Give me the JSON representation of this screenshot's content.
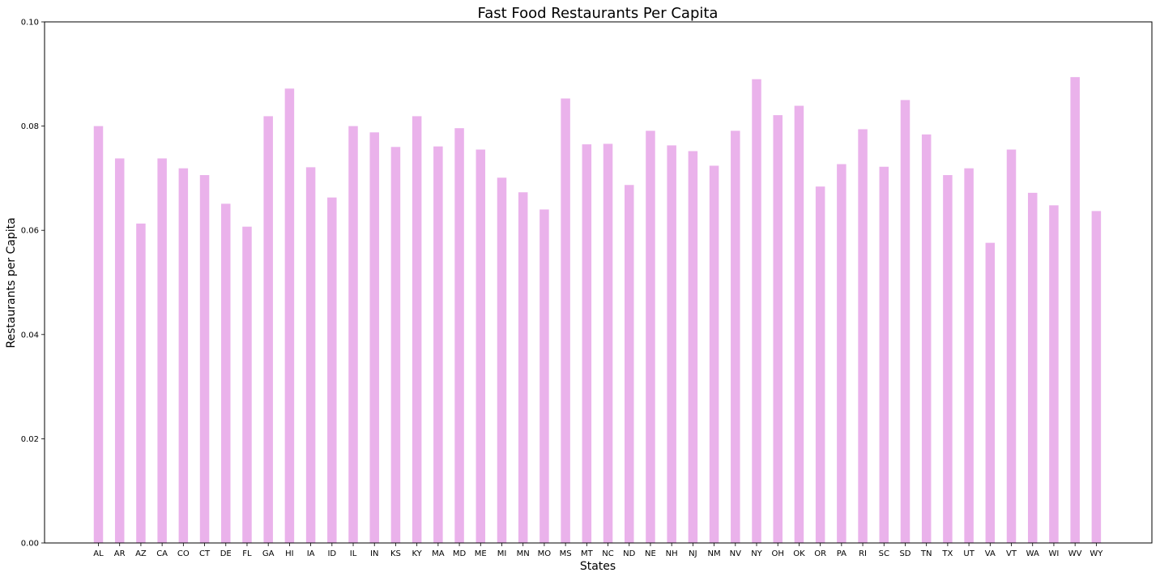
{
  "chart_data": {
    "type": "bar",
    "title": "Fast Food Restaurants Per Capita",
    "xlabel": "States",
    "ylabel": "Restaurants per Capita",
    "ylim": [
      0,
      0.1
    ],
    "yticks": [
      "0.00",
      "0.02",
      "0.04",
      "0.06",
      "0.08",
      "0.10"
    ],
    "grid": false,
    "bar_color": "#eab2eb",
    "categories": [
      "AL",
      "AR",
      "AZ",
      "CA",
      "CO",
      "CT",
      "DE",
      "FL",
      "GA",
      "HI",
      "IA",
      "ID",
      "IL",
      "IN",
      "KS",
      "KY",
      "MA",
      "MD",
      "ME",
      "MI",
      "MN",
      "MO",
      "MS",
      "MT",
      "NC",
      "ND",
      "NE",
      "NH",
      "NJ",
      "NM",
      "NV",
      "NY",
      "OH",
      "OK",
      "OR",
      "PA",
      "RI",
      "SC",
      "SD",
      "TN",
      "TX",
      "UT",
      "VA",
      "VT",
      "WA",
      "WI",
      "WV",
      "WY"
    ],
    "values": [
      0.08,
      0.0738,
      0.0613,
      0.0738,
      0.0719,
      0.0706,
      0.0651,
      0.0607,
      0.0819,
      0.0872,
      0.0721,
      0.0663,
      0.08,
      0.0788,
      0.076,
      0.0819,
      0.0761,
      0.0796,
      0.0755,
      0.0701,
      0.0673,
      0.064,
      0.0853,
      0.0765,
      0.0766,
      0.0687,
      0.0791,
      0.0763,
      0.0752,
      0.0724,
      0.0791,
      0.089,
      0.0821,
      0.0839,
      0.0684,
      0.0727,
      0.0794,
      0.0722,
      0.085,
      0.0784,
      0.0706,
      0.0719,
      0.0576,
      0.0755,
      0.0672,
      0.0648,
      0.0894,
      0.0637
    ]
  }
}
